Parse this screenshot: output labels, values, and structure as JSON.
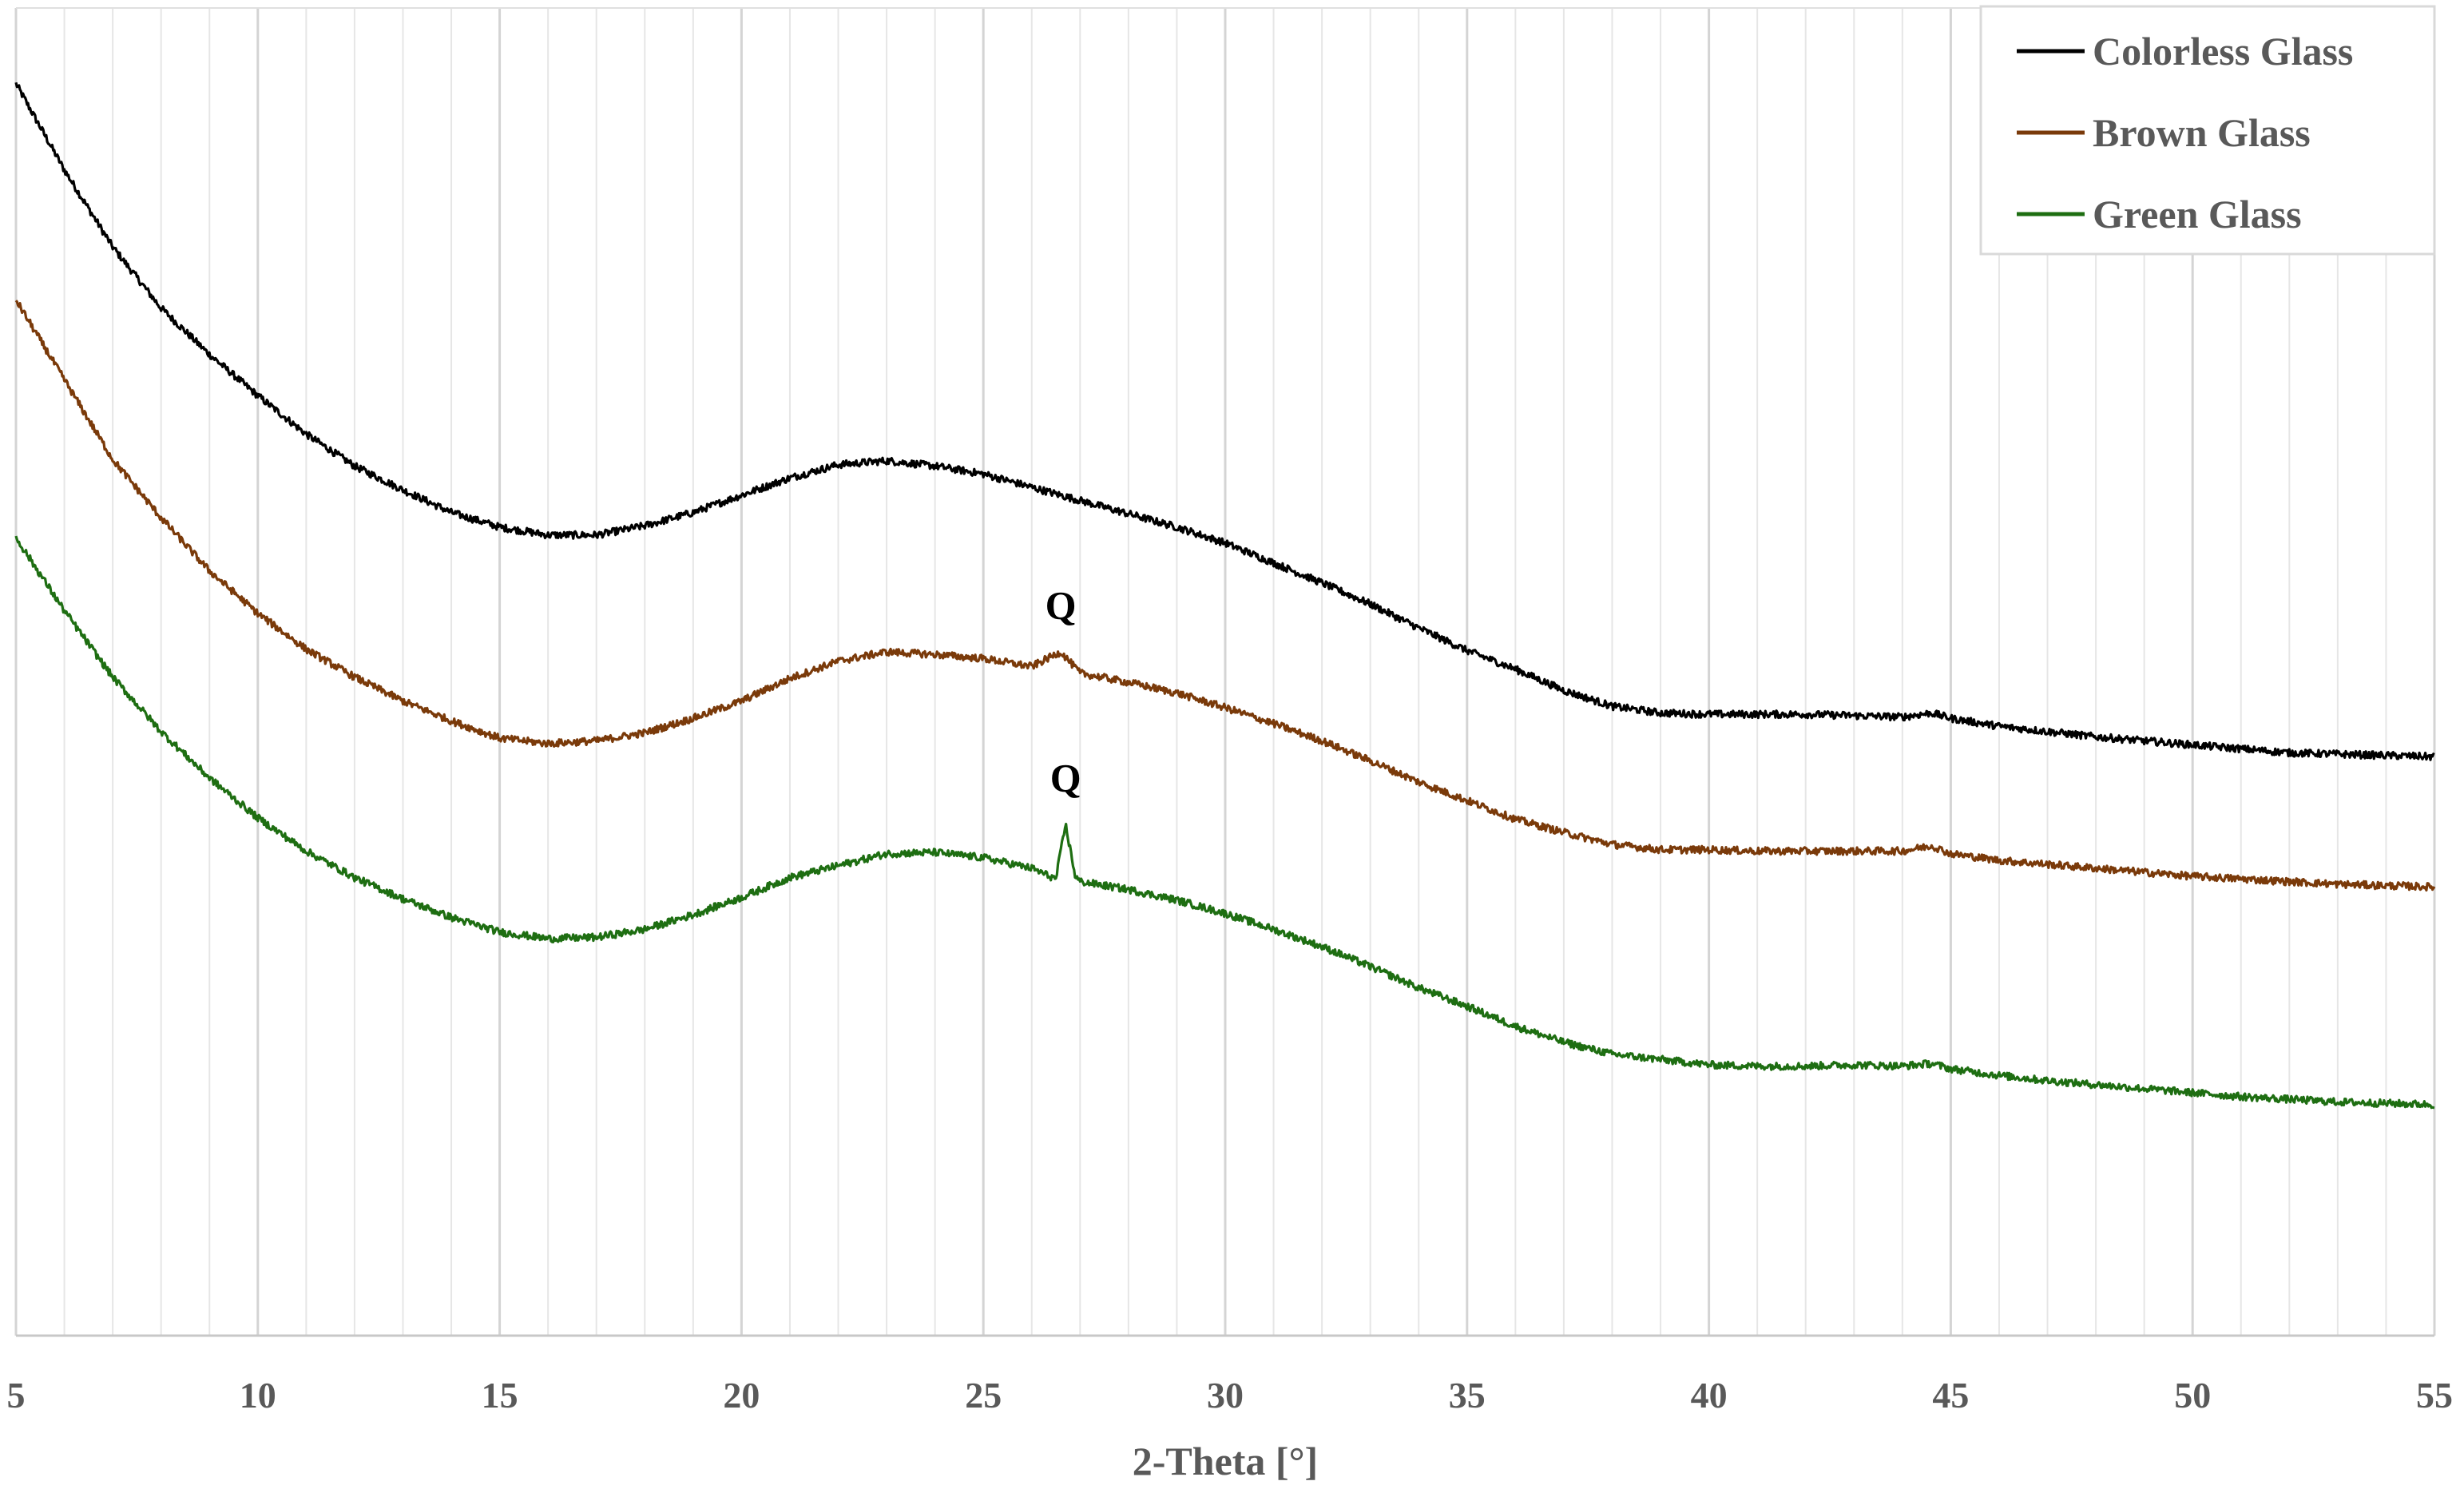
{
  "chart_data": {
    "type": "line",
    "title": "",
    "xlabel": "2-Theta [°]",
    "ylabel": "",
    "xlim": [
      5,
      55
    ],
    "ylim": [
      0,
      100
    ],
    "x_ticks": [
      5,
      10,
      15,
      20,
      25,
      30,
      35,
      40,
      45,
      50,
      55
    ],
    "x_minor_step": 1,
    "grid": "vertical",
    "legend_position": "top-right",
    "y_axis_values_shown": false,
    "series": [
      {
        "name": "Colorless Glass",
        "color": "#000000",
        "x": [
          5,
          6,
          7,
          8,
          9,
          10,
          11,
          12,
          13,
          14,
          15,
          16,
          17,
          18,
          19,
          20,
          21,
          22,
          23,
          24,
          25,
          26,
          27,
          28,
          29,
          30,
          31,
          32,
          33,
          34,
          35,
          36,
          37,
          38,
          39,
          40,
          41,
          42,
          43,
          44,
          44.6,
          45,
          46,
          47,
          48,
          49,
          50,
          51,
          52,
          53,
          54,
          55
        ],
        "values": [
          94.3,
          87.8,
          82.0,
          77.4,
          73.9,
          70.8,
          67.9,
          65.5,
          63.7,
          62.0,
          60.9,
          60.3,
          60.3,
          61.0,
          62.0,
          63.3,
          64.6,
          65.6,
          65.9,
          65.5,
          64.9,
          63.9,
          62.9,
          61.9,
          60.9,
          59.7,
          58.2,
          56.7,
          55.1,
          53.3,
          51.6,
          50.2,
          48.6,
          47.4,
          46.9,
          46.8,
          46.8,
          46.8,
          46.7,
          46.6,
          46.9,
          46.5,
          45.9,
          45.5,
          45.1,
          44.8,
          44.5,
          44.2,
          43.9,
          43.8,
          43.7,
          43.6
        ]
      },
      {
        "name": "Brown Glass",
        "color": "#7a3a0a",
        "x": [
          5,
          6,
          7,
          8,
          9,
          10,
          11,
          12,
          13,
          14,
          15,
          16,
          17,
          18,
          19,
          20,
          21,
          22,
          23,
          24,
          25,
          26,
          26.6,
          27,
          28,
          29,
          30,
          31,
          32,
          33,
          34,
          35,
          36,
          37,
          38,
          39,
          40,
          41,
          42,
          43,
          44,
          44.6,
          45,
          46,
          47,
          48,
          49,
          50,
          51,
          52,
          53,
          54,
          55
        ],
        "values": [
          78.0,
          72.0,
          66.0,
          61.6,
          57.6,
          54.4,
          51.7,
          49.6,
          47.8,
          46.3,
          45.0,
          44.6,
          44.8,
          45.4,
          46.5,
          47.8,
          49.5,
          50.8,
          51.5,
          51.3,
          51.0,
          50.4,
          51.5,
          49.9,
          49.2,
          48.4,
          47.3,
          46.1,
          44.8,
          43.3,
          41.7,
          40.3,
          38.9,
          37.9,
          37.0,
          36.6,
          36.6,
          36.5,
          36.5,
          36.5,
          36.5,
          36.9,
          36.3,
          35.8,
          35.5,
          35.2,
          34.9,
          34.6,
          34.4,
          34.2,
          34.0,
          33.9,
          33.8
        ]
      },
      {
        "name": "Green Glass",
        "color": "#1e6e12",
        "x": [
          5,
          6,
          7,
          8,
          9,
          10,
          11,
          12,
          13,
          14,
          15,
          16,
          17,
          18,
          19,
          20,
          21,
          22,
          23,
          24,
          25,
          26,
          26.5,
          26.7,
          26.9,
          27,
          28,
          29,
          30,
          31,
          32,
          33,
          34,
          35,
          36,
          37,
          38,
          39,
          40,
          41,
          42,
          43,
          44,
          44.6,
          45,
          46,
          47,
          48,
          49,
          50,
          51,
          52,
          53,
          54,
          55
        ],
        "values": [
          60.1,
          54.6,
          49.6,
          45.5,
          42.0,
          39.0,
          36.5,
          34.5,
          32.9,
          31.5,
          30.4,
          29.9,
          30.0,
          30.6,
          31.7,
          33.0,
          34.5,
          35.4,
          36.3,
          36.4,
          36.0,
          35.2,
          34.4,
          38.5,
          34.6,
          34.2,
          33.6,
          32.8,
          31.8,
          30.6,
          29.3,
          27.8,
          26.2,
          24.8,
          23.3,
          22.1,
          21.2,
          20.8,
          20.4,
          20.3,
          20.3,
          20.4,
          20.3,
          20.5,
          20.1,
          19.6,
          19.2,
          18.9,
          18.6,
          18.3,
          18.0,
          17.8,
          17.6,
          17.5,
          17.4
        ]
      }
    ],
    "annotations": [
      {
        "text": "Q",
        "x": 26.6,
        "y": 54.0,
        "series": "Brown Glass"
      },
      {
        "text": "Q",
        "x": 26.7,
        "y": 41.0,
        "series": "Green Glass"
      }
    ]
  }
}
